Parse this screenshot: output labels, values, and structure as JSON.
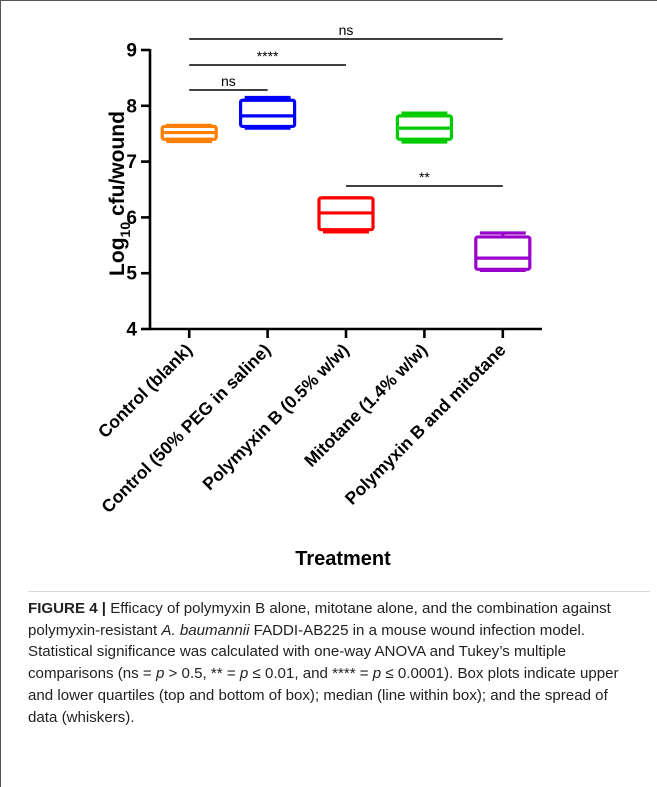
{
  "chart_data": {
    "type": "box",
    "xlabel": "Treatment",
    "ylabel_main": "Log",
    "ylabel_sub": "10",
    "ylabel_rest": " cfu/wound",
    "ylim": [
      4,
      9
    ],
    "yticks": [
      "4",
      "5",
      "6",
      "7",
      "8",
      "9"
    ],
    "groups": [
      {
        "name": "Control (blank)",
        "color": "#FF7F00",
        "q1": 7.4,
        "median": 7.52,
        "q3": 7.63,
        "min": 7.36,
        "max": 7.65
      },
      {
        "name": "Control (50% PEG in saline)",
        "color": "#0000FF",
        "q1": 7.63,
        "median": 7.82,
        "q3": 8.1,
        "min": 7.6,
        "max": 8.15
      },
      {
        "name": "Polymyxin B (0.5% w/w)",
        "color": "#FF0000",
        "q1": 5.78,
        "median": 6.08,
        "q3": 6.35,
        "min": 5.74,
        "max": 6.35
      },
      {
        "name": "Mitotane (1.4% w/w)",
        "color": "#00CC00",
        "q1": 7.4,
        "median": 7.6,
        "q3": 7.82,
        "min": 7.35,
        "max": 7.87
      },
      {
        "name": "Polymyxin B and mitotane",
        "color": "#9900CC",
        "q1": 5.07,
        "median": 5.27,
        "q3": 5.65,
        "min": 5.05,
        "max": 5.72
      }
    ],
    "comparisons": [
      {
        "from": 0,
        "to": 4,
        "label": "ns"
      },
      {
        "from": 0,
        "to": 2,
        "label": "****"
      },
      {
        "from": 0,
        "to": 1,
        "label": "ns"
      },
      {
        "from": 2,
        "to": 4,
        "label": "**"
      }
    ]
  },
  "caption": {
    "label": "FIGURE 4 |",
    "text_1": " Efficacy of polymyxin B alone, mitotane alone, and the combination against polymyxin-resistant ",
    "species": "A. baumannii",
    "text_2": " FADDI-AB225 in a mouse wound infection model. Statistical significance was calculated with one-way ANOVA and Tukey’s multiple comparisons (ns = ",
    "p1": "p",
    "text_3": " > 0.5, ** = ",
    "p2": "p",
    "text_4": " ≤ 0.01, and **** = ",
    "p3": "p",
    "text_5": " ≤ 0.0001). Box plots indicate upper and lower quartiles (top and bottom of box); median (line within box); and the spread of data (whiskers)."
  }
}
